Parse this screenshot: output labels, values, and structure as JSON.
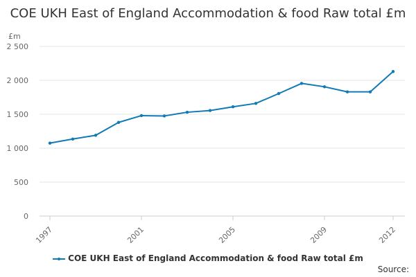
{
  "chart_data": {
    "type": "line",
    "title": "COE UKH East of England Accommodation & food Raw total £m",
    "ylabel": "£m",
    "xlabel": "",
    "x": [
      1997,
      1998,
      1999,
      2000,
      2001,
      2002,
      2003,
      2004,
      2005,
      2006,
      2007,
      2008,
      2009,
      2010,
      2011,
      2012
    ],
    "x_tick_labels": [
      "1997",
      "2001",
      "2005",
      "2009",
      "2012"
    ],
    "y_tick_labels": [
      "0",
      "500",
      "1 000",
      "1 500",
      "2 000",
      "2 500"
    ],
    "y_ticks": [
      0,
      500,
      1000,
      1500,
      2000,
      2500
    ],
    "ylim": [
      0,
      2500
    ],
    "xlim": [
      1997,
      2012
    ],
    "grid": true,
    "legend_position": "bottom",
    "series": [
      {
        "name": "COE UKH East of England Accommodation & food Raw total £m",
        "color": "#0f7ab4",
        "values": [
          1075,
          1135,
          1190,
          1380,
          1480,
          1475,
          1530,
          1555,
          1610,
          1660,
          1805,
          1955,
          1905,
          1830,
          1830,
          2130
        ]
      }
    ]
  },
  "source_label": "Source:"
}
